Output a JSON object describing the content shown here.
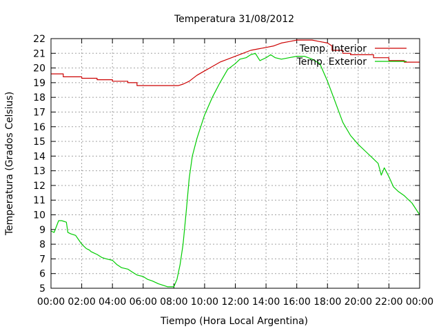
{
  "chart_data": {
    "type": "line",
    "title": "Temperatura 31/08/2012",
    "xlabel": "Tiempo (Hora Local Argentina)",
    "ylabel": "Temperatura (Grados Celsius)",
    "xlim": [
      0,
      24
    ],
    "ylim": [
      5,
      22
    ],
    "x_ticks": [
      "00:00",
      "02:00",
      "04:00",
      "06:00",
      "08:00",
      "10:00",
      "12:00",
      "14:00",
      "16:00",
      "18:00",
      "20:00",
      "22:00",
      "00:00"
    ],
    "y_ticks": [
      "5",
      "6",
      "7",
      "8",
      "9",
      "10",
      "11",
      "12",
      "13",
      "14",
      "15",
      "16",
      "17",
      "18",
      "19",
      "20",
      "21",
      "22"
    ],
    "grid": true,
    "legend_position": "top-right",
    "series": [
      {
        "name": "Temp. Interior",
        "color": "#cc0000",
        "x": [
          0,
          0.8,
          0.8,
          2.0,
          2.0,
          3.0,
          3.0,
          4.0,
          4.0,
          5.0,
          5.0,
          5.6,
          5.6,
          8.0,
          8.3,
          8.6,
          9.0,
          9.5,
          10.0,
          10.5,
          11.0,
          11.5,
          12.0,
          12.5,
          13.0,
          13.5,
          14.0,
          14.5,
          15.0,
          15.5,
          16.0,
          16.5,
          17.0,
          17.5,
          18.0,
          18.3,
          18.3,
          19.0,
          19.0,
          19.5,
          19.5,
          21.0,
          21.0,
          22.0,
          22.0,
          23.0,
          23.0,
          24.0
        ],
        "y": [
          19.6,
          19.6,
          19.4,
          19.4,
          19.3,
          19.3,
          19.2,
          19.2,
          19.1,
          19.1,
          19.0,
          19.0,
          18.8,
          18.8,
          18.8,
          18.9,
          19.1,
          19.5,
          19.8,
          20.1,
          20.4,
          20.6,
          20.8,
          21.0,
          21.2,
          21.3,
          21.4,
          21.5,
          21.7,
          21.8,
          21.9,
          21.9,
          21.9,
          21.8,
          21.7,
          21.5,
          21.2,
          21.2,
          21.0,
          21.0,
          20.9,
          20.9,
          20.7,
          20.7,
          20.5,
          20.5,
          20.4,
          20.4
        ]
      },
      {
        "name": "Temp. Exterior",
        "color": "#00cc00",
        "x": [
          0,
          0.2,
          0.5,
          0.7,
          1.0,
          1.1,
          1.3,
          1.6,
          2.0,
          2.3,
          2.5,
          2.6,
          2.8,
          3.0,
          3.3,
          3.6,
          4.0,
          4.3,
          4.6,
          5.0,
          5.3,
          5.6,
          6.0,
          6.3,
          6.6,
          7.0,
          7.3,
          7.6,
          8.0,
          8.2,
          8.4,
          8.6,
          8.8,
          9.0,
          9.2,
          9.5,
          10.0,
          10.5,
          11.0,
          11.5,
          12.0,
          12.3,
          12.7,
          13.0,
          13.3,
          13.6,
          14.0,
          14.3,
          14.6,
          15.0,
          15.5,
          16.0,
          16.5,
          17.0,
          17.5,
          18.0,
          18.5,
          19.0,
          19.5,
          20.0,
          20.5,
          21.0,
          21.3,
          21.5,
          21.7,
          22.0,
          22.3,
          22.6,
          23.0,
          23.5,
          24.0
        ],
        "y": [
          8.9,
          8.8,
          9.6,
          9.6,
          9.5,
          8.8,
          8.7,
          8.6,
          8.0,
          7.7,
          7.6,
          7.5,
          7.4,
          7.3,
          7.1,
          7.0,
          6.9,
          6.6,
          6.4,
          6.3,
          6.1,
          5.9,
          5.8,
          5.6,
          5.5,
          5.3,
          5.2,
          5.1,
          5.1,
          5.6,
          6.6,
          8.0,
          10.2,
          12.5,
          14.0,
          15.2,
          16.8,
          18.0,
          19.0,
          19.9,
          20.3,
          20.6,
          20.7,
          20.9,
          21.0,
          20.5,
          20.7,
          20.9,
          20.7,
          20.6,
          20.7,
          20.8,
          20.8,
          20.6,
          20.3,
          19.1,
          17.7,
          16.3,
          15.4,
          14.8,
          14.3,
          13.8,
          13.5,
          12.7,
          13.2,
          12.6,
          11.9,
          11.6,
          11.3,
          10.8,
          10.0
        ]
      }
    ]
  }
}
